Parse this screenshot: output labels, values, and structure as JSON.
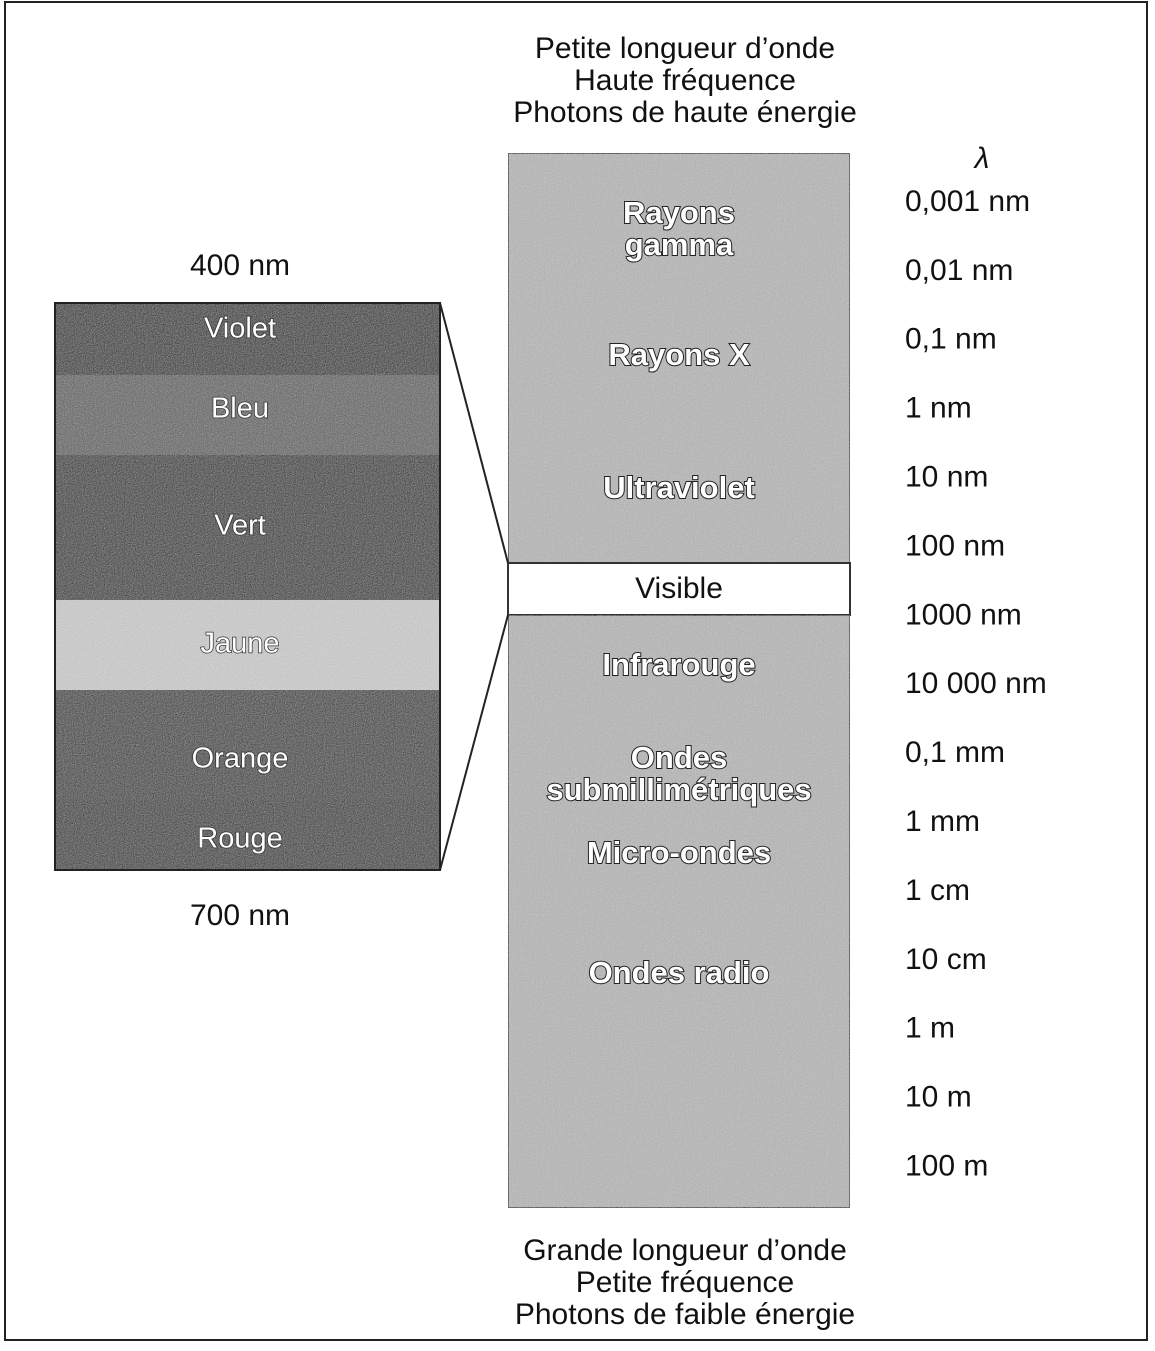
{
  "header": {
    "lines": [
      "Petite longueur d’onde",
      "Haute fréquence",
      "Photons de haute énergie"
    ]
  },
  "scale": {
    "symbol": "λ",
    "labels": [
      "0,001 nm",
      "0,01 nm",
      "0,1 nm",
      "1 nm",
      "10 nm",
      "100 nm",
      "1000 nm",
      "10 000 nm",
      "0,1 mm",
      "1 mm",
      "1 cm",
      "10 cm",
      "1 m",
      "10 m",
      "100 m"
    ]
  },
  "bands": [
    {
      "lines": [
        "Rayons",
        "gamma"
      ]
    },
    {
      "lines": [
        "Rayons X"
      ]
    },
    {
      "lines": [
        "Ultraviolet"
      ]
    },
    {
      "lines": [
        "Visible"
      ]
    },
    {
      "lines": [
        "Infrarouge"
      ]
    },
    {
      "lines": [
        "Ondes",
        "submillimétriques"
      ]
    },
    {
      "lines": [
        "Micro-ondes"
      ]
    },
    {
      "lines": [
        "Ondes radio"
      ]
    }
  ],
  "visible_spectrum": {
    "top_label": "400 nm",
    "bottom_label": "700 nm",
    "colors": [
      "Violet",
      "Bleu",
      "Vert",
      "Jaune",
      "Orange",
      "Rouge"
    ]
  },
  "footer": {
    "lines": [
      "Grande longueur d’onde",
      "Petite fréquence",
      "Photons de faible énergie"
    ]
  }
}
